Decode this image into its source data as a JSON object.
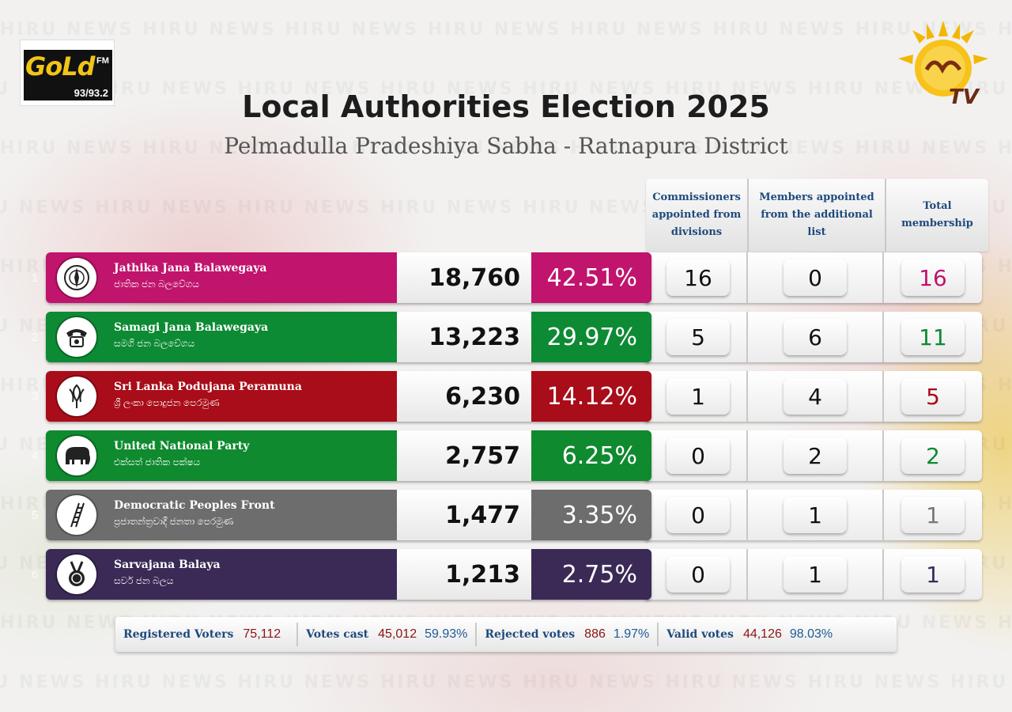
{
  "header": {
    "title": "Local Authorities Election 2025",
    "subtitle": "Pelmadulla Pradeshiya Sabha - Ratnapura District"
  },
  "logos": {
    "gold": {
      "word": "GoLd",
      "fm": "FM",
      "freq": "93/93.2"
    },
    "hiru": {
      "tv": "TV"
    }
  },
  "watermark_text": "HIRU NEWS",
  "columns": {
    "commissioners": "Commissioners appointed from divisions",
    "additional": "Members appointed from the additional list",
    "total": "Total membership"
  },
  "parties": [
    {
      "rank": "1",
      "name_en": "Jathika Jana Balawegaya",
      "name_si": "ජාතික ජන බලවේගය",
      "votes": "18,760",
      "pct": "42.51%",
      "commissioners": "16",
      "additional": "0",
      "total": "16",
      "color": "#c0146d",
      "total_color": "#c0146d",
      "symbol": "compass-icon"
    },
    {
      "rank": "2",
      "name_en": "Samagi Jana Balawegaya",
      "name_si": "සමගි ජන බලවේගය",
      "votes": "13,223",
      "pct": "29.97%",
      "commissioners": "5",
      "additional": "6",
      "total": "11",
      "color": "#0d8a34",
      "total_color": "#0d8a34",
      "symbol": "telephone-icon"
    },
    {
      "rank": "3",
      "name_en": "Sri Lanka Podujana Peramuna",
      "name_si": "ශ්‍රී ලංකා පොදුජන පෙරමුණ",
      "votes": "6,230",
      "pct": "14.12%",
      "commissioners": "1",
      "additional": "4",
      "total": "5",
      "color": "#a80d19",
      "total_color": "#a80d19",
      "symbol": "lotus-bud-icon"
    },
    {
      "rank": "4",
      "name_en": "United National Party",
      "name_si": "එක්සත් ජාතික පක්ෂය",
      "votes": "2,757",
      "pct": "6.25%",
      "commissioners": "0",
      "additional": "2",
      "total": "2",
      "color": "#0f8a2f",
      "total_color": "#0f8a2f",
      "symbol": "elephant-icon"
    },
    {
      "rank": "5",
      "name_en": "Democratic Peoples Front",
      "name_si": "ප්‍රජාතන්ත්‍රවාදී ජනතා පෙරමුණ",
      "votes": "1,477",
      "pct": "3.35%",
      "commissioners": "0",
      "additional": "1",
      "total": "1",
      "color": "#6d6d6d",
      "total_color": "#777777",
      "symbol": "ladder-icon"
    },
    {
      "rank": "6",
      "name_en": "Sarvajana Balaya",
      "name_si": "සර්ව ජන බලය",
      "votes": "1,213",
      "pct": "2.75%",
      "commissioners": "0",
      "additional": "1",
      "total": "1",
      "color": "#3a2a55",
      "total_color": "#3a2a55",
      "symbol": "medal-icon"
    }
  ],
  "stats": {
    "registered": {
      "label": "Registered Voters",
      "value": "75,112"
    },
    "cast": {
      "label": "Votes cast",
      "value": "45,012",
      "pct": "59.93%"
    },
    "rejected": {
      "label": "Rejected votes",
      "value": "886",
      "pct": "1.97%"
    },
    "valid": {
      "label": "Valid votes",
      "value": "44,126",
      "pct": "98.03%"
    }
  }
}
